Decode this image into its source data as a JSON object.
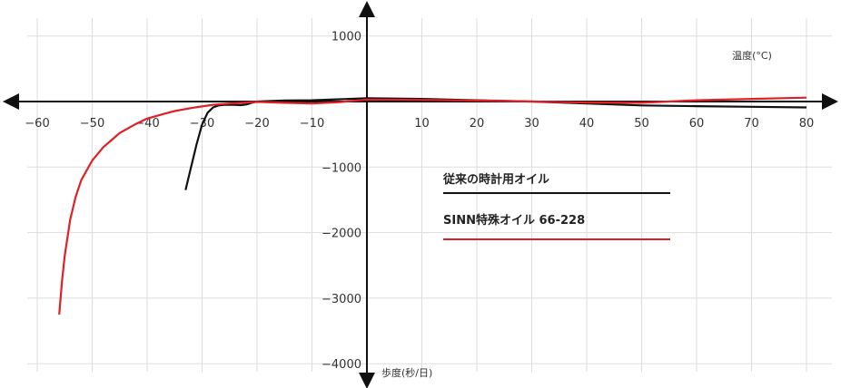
{
  "chart_data": {
    "type": "line",
    "xlabel": "温度(°C)",
    "ylabel": "歩度(秒/日)",
    "xlim": [
      -65,
      82
    ],
    "ylim": [
      -4200,
      1400
    ],
    "x_ticks": [
      -60,
      -50,
      -40,
      -30,
      -20,
      -10,
      10,
      20,
      30,
      40,
      50,
      60,
      70,
      80
    ],
    "y_ticks": [
      1000,
      -1000,
      -2000,
      -3000,
      -4000
    ],
    "x_tick_labels": [
      "−60",
      "−50",
      "−40",
      "−30",
      "−20",
      "−10",
      "10",
      "20",
      "30",
      "40",
      "50",
      "60",
      "70",
      "80"
    ],
    "y_tick_labels": [
      "1000",
      "−1000",
      "−2000",
      "−3000",
      "−4000"
    ],
    "grid": true,
    "legend_placement": "right-center",
    "series": [
      {
        "name": "従来の時計用オイル",
        "color": "#111111",
        "x": [
          -33,
          -32,
          -31,
          -30,
          -29,
          -28,
          -27,
          -26,
          -25,
          -24,
          -23,
          -22,
          -21,
          -20,
          -15,
          -10,
          -5,
          0,
          10,
          20,
          30,
          40,
          50,
          60,
          70,
          80
        ],
        "y": [
          -1350,
          -1000,
          -650,
          -350,
          -170,
          -90,
          -60,
          -50,
          -50,
          -50,
          -55,
          -45,
          -20,
          0,
          15,
          20,
          35,
          50,
          40,
          20,
          0,
          -30,
          -60,
          -70,
          -80,
          -90
        ]
      },
      {
        "name": "SINN特殊オイル 66-228",
        "color": "#e02026",
        "x": [
          -56,
          -55.5,
          -55,
          -54,
          -53,
          -52,
          -50,
          -48,
          -45,
          -42,
          -40,
          -37,
          -35,
          -32,
          -30,
          -28,
          -25,
          -22,
          -20,
          -15,
          -10,
          -5,
          0,
          10,
          20,
          30,
          40,
          50,
          60,
          70,
          80
        ],
        "y": [
          -3250,
          -2750,
          -2350,
          -1800,
          -1450,
          -1200,
          -900,
          -700,
          -480,
          -340,
          -260,
          -190,
          -145,
          -100,
          -75,
          -50,
          -30,
          -15,
          -5,
          -20,
          -30,
          -10,
          30,
          25,
          15,
          0,
          -15,
          -20,
          20,
          40,
          60
        ]
      }
    ]
  }
}
